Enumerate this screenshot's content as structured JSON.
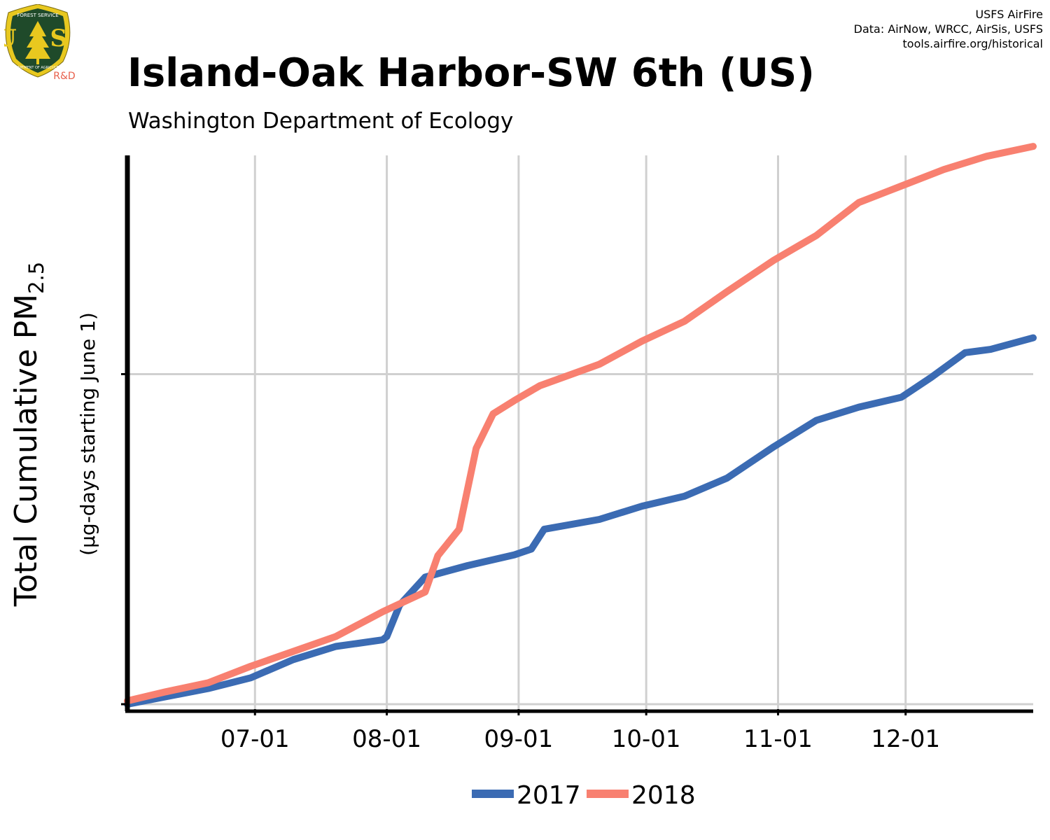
{
  "header": {
    "title": "Island-Oak Harbor-SW 6th (US)",
    "subtitle": "Washington Department of Ecology",
    "credits": [
      "USFS AirFire",
      "Data: AirNow, WRCC, AirSis, USFS",
      "tools.airfire.org/historical"
    ]
  },
  "logo": {
    "top_text": "FOREST SERVICE",
    "letters": "U S",
    "bottom_text": "DEPARTMENT OF AGRICULTURE",
    "tag": "R&D",
    "colors": {
      "shield": "#1f4a2a",
      "rim": "#e8c81f",
      "tag": "#e8604c"
    }
  },
  "chart_data": {
    "type": "line",
    "title": "Island-Oak Harbor-SW 6th (US)",
    "subtitle": "Washington Department of Ecology",
    "ylabel_main": "Total Cumulative PM",
    "ylabel_sub": "2.5",
    "ylabel_units": "(µg-days starting June 1)",
    "x_range": [
      "06-01",
      "12-31"
    ],
    "x_ticks": [
      "07-01",
      "08-01",
      "09-01",
      "10-01",
      "11-01",
      "12-01"
    ],
    "y_ticks": [
      0,
      2000
    ],
    "y_tick_labels_shown": false,
    "ylim": [
      0,
      3300
    ],
    "grid": true,
    "legend_position": "bottom",
    "series": [
      {
        "name": "2017",
        "color": "#3b6bb3",
        "points": [
          [
            "06-01",
            0
          ],
          [
            "06-10",
            45
          ],
          [
            "06-20",
            95
          ],
          [
            "06-30",
            160
          ],
          [
            "07-10",
            270
          ],
          [
            "07-20",
            350
          ],
          [
            "07-31",
            390
          ],
          [
            "08-01",
            410
          ],
          [
            "08-04",
            600
          ],
          [
            "08-10",
            770
          ],
          [
            "08-20",
            840
          ],
          [
            "08-31",
            905
          ],
          [
            "09-04",
            940
          ],
          [
            "09-07",
            1060
          ],
          [
            "09-20",
            1120
          ],
          [
            "09-30",
            1200
          ],
          [
            "10-10",
            1260
          ],
          [
            "10-20",
            1370
          ],
          [
            "10-31",
            1560
          ],
          [
            "11-10",
            1720
          ],
          [
            "11-20",
            1800
          ],
          [
            "11-30",
            1860
          ],
          [
            "12-07",
            1980
          ],
          [
            "12-15",
            2130
          ],
          [
            "12-21",
            2150
          ],
          [
            "12-31",
            2220
          ]
        ]
      },
      {
        "name": "2018",
        "color": "#f88070",
        "points": [
          [
            "06-01",
            20
          ],
          [
            "06-10",
            75
          ],
          [
            "06-20",
            130
          ],
          [
            "06-30",
            230
          ],
          [
            "07-10",
            320
          ],
          [
            "07-20",
            410
          ],
          [
            "07-31",
            560
          ],
          [
            "08-10",
            680
          ],
          [
            "08-13",
            900
          ],
          [
            "08-18",
            1060
          ],
          [
            "08-22",
            1550
          ],
          [
            "08-26",
            1760
          ],
          [
            "08-31",
            1840
          ],
          [
            "09-06",
            1930
          ],
          [
            "09-20",
            2060
          ],
          [
            "09-30",
            2200
          ],
          [
            "10-10",
            2320
          ],
          [
            "10-20",
            2500
          ],
          [
            "10-31",
            2690
          ],
          [
            "11-10",
            2840
          ],
          [
            "11-20",
            3040
          ],
          [
            "11-30",
            3140
          ],
          [
            "12-10",
            3240
          ],
          [
            "12-20",
            3320
          ],
          [
            "12-31",
            3380
          ]
        ]
      }
    ]
  }
}
